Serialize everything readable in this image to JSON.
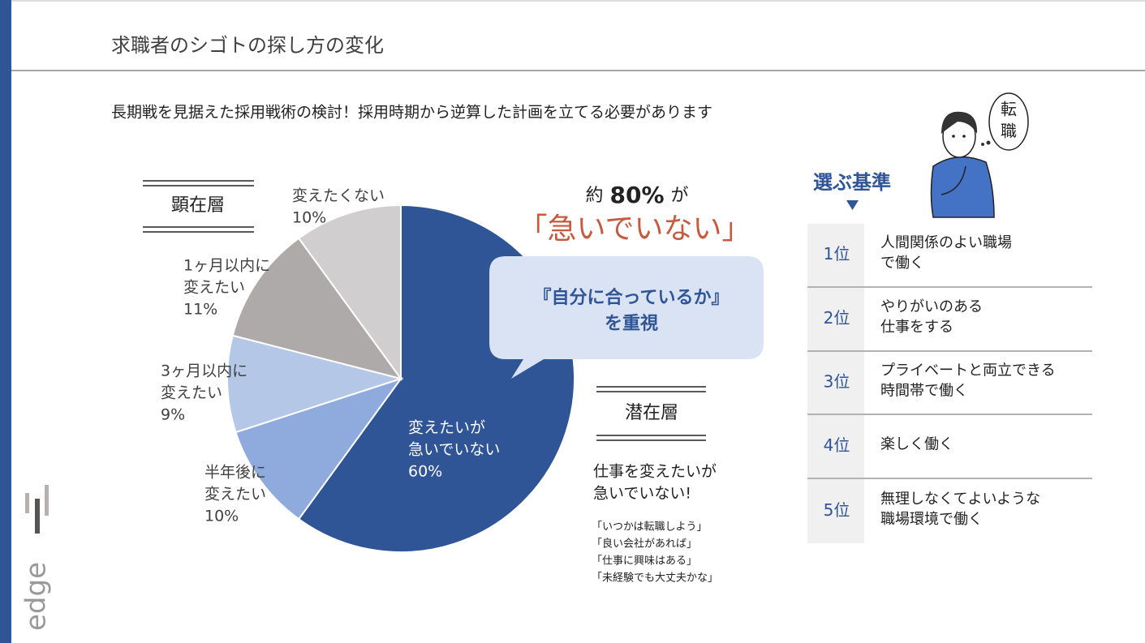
{
  "header": {
    "title": "求職者のシゴトの探し方の変化"
  },
  "subtitle": "長期戦を見据えた採用戦術の検討！採用時期から逆算した計画を立てる必要があります",
  "chart_data": {
    "type": "pie",
    "categories": [
      [
        "変えたいが",
        "急いでいない"
      ],
      [
        "半年後に",
        "変えたい"
      ],
      [
        "3ヶ月以内に",
        "変えたい"
      ],
      [
        "1ヶ月以内に",
        "変えたい"
      ],
      [
        "変えたくない"
      ]
    ],
    "values": [
      60,
      10,
      9,
      11,
      10
    ],
    "value_labels": [
      "60%",
      "10%",
      "9%",
      "11%",
      "10%"
    ],
    "colors": [
      "#2f5597",
      "#8faadc",
      "#b4c7e7",
      "#aeaaaa",
      "#d0cece"
    ]
  },
  "segments": {
    "overt": "顕在層",
    "latent": "潜在層"
  },
  "callout": {
    "prefix": "約",
    "highlight": "80%",
    "suffix": "が",
    "headline": "「急いでいない」",
    "bubble": [
      "『自分に合っているか』",
      "を重視"
    ]
  },
  "latent_note": {
    "lines": [
      "仕事を変えたいが",
      "急いでいない!"
    ],
    "quotes": [
      "「いつかは転職しよう」",
      "「良い会社があれば」",
      "「仕事に興味はある」",
      "「未経験でも大丈夫かな」"
    ]
  },
  "criteria": {
    "title": "選ぶ基準",
    "items": [
      {
        "rank": "1位",
        "lines": [
          "人間関係のよい職場",
          "で働く"
        ]
      },
      {
        "rank": "2位",
        "lines": [
          "やりがいのある",
          "仕事をする"
        ]
      },
      {
        "rank": "3位",
        "lines": [
          "プライベートと両立できる",
          "時間帯で働く"
        ]
      },
      {
        "rank": "4位",
        "lines": [
          "楽しく働く"
        ]
      },
      {
        "rank": "5位",
        "lines": [
          "無理しなくてよいような",
          "職場環境で働く"
        ]
      }
    ]
  },
  "illustration": {
    "bubble": [
      "転",
      "職"
    ]
  },
  "logo": "edge"
}
